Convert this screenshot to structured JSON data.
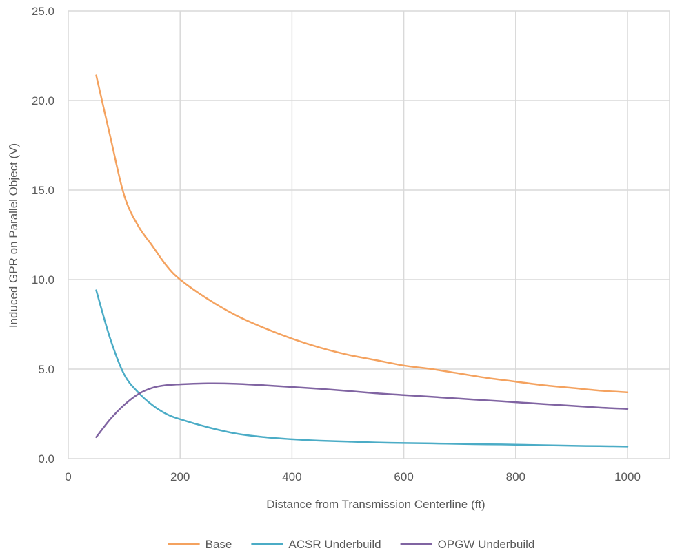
{
  "chart_data": {
    "type": "line",
    "title": "",
    "xlabel": "Distance from Transmission Centerline (ft)",
    "ylabel": "Induced GPR on Parallel Object (V)",
    "xlim": [
      0,
      1000
    ],
    "ylim": [
      0,
      25
    ],
    "x_ticks": [
      "0",
      "200",
      "400",
      "600",
      "800",
      "1000"
    ],
    "y_ticks": [
      "0.0",
      "5.0",
      "10.0",
      "15.0",
      "20.0",
      "25.0"
    ],
    "grid": true,
    "legend_position": "bottom",
    "series": [
      {
        "name": "Base",
        "color": "#F4A25F",
        "points": [
          [
            50,
            21.4
          ],
          [
            75,
            18.0
          ],
          [
            100,
            14.7
          ],
          [
            125,
            13.0
          ],
          [
            150,
            11.9
          ],
          [
            175,
            10.8
          ],
          [
            200,
            10.0
          ],
          [
            250,
            8.9
          ],
          [
            300,
            8.0
          ],
          [
            350,
            7.3
          ],
          [
            400,
            6.7
          ],
          [
            450,
            6.2
          ],
          [
            500,
            5.8
          ],
          [
            550,
            5.5
          ],
          [
            600,
            5.2
          ],
          [
            650,
            5.0
          ],
          [
            700,
            4.75
          ],
          [
            750,
            4.5
          ],
          [
            800,
            4.3
          ],
          [
            850,
            4.1
          ],
          [
            900,
            3.95
          ],
          [
            950,
            3.8
          ],
          [
            1000,
            3.7
          ]
        ]
      },
      {
        "name": "ACSR Underbuild",
        "color": "#4BACC6",
        "points": [
          [
            50,
            9.4
          ],
          [
            75,
            6.7
          ],
          [
            100,
            4.7
          ],
          [
            125,
            3.7
          ],
          [
            150,
            3.0
          ],
          [
            175,
            2.5
          ],
          [
            200,
            2.2
          ],
          [
            250,
            1.75
          ],
          [
            300,
            1.4
          ],
          [
            350,
            1.2
          ],
          [
            400,
            1.08
          ],
          [
            450,
            1.0
          ],
          [
            500,
            0.95
          ],
          [
            550,
            0.9
          ],
          [
            600,
            0.87
          ],
          [
            650,
            0.85
          ],
          [
            700,
            0.82
          ],
          [
            750,
            0.8
          ],
          [
            800,
            0.78
          ],
          [
            850,
            0.75
          ],
          [
            900,
            0.72
          ],
          [
            950,
            0.7
          ],
          [
            1000,
            0.68
          ]
        ]
      },
      {
        "name": "OPGW Underbuild",
        "color": "#8064A2",
        "points": [
          [
            50,
            1.2
          ],
          [
            75,
            2.2
          ],
          [
            100,
            3.0
          ],
          [
            125,
            3.6
          ],
          [
            150,
            3.95
          ],
          [
            175,
            4.1
          ],
          [
            200,
            4.15
          ],
          [
            250,
            4.2
          ],
          [
            300,
            4.18
          ],
          [
            350,
            4.1
          ],
          [
            400,
            4.0
          ],
          [
            450,
            3.9
          ],
          [
            500,
            3.78
          ],
          [
            550,
            3.65
          ],
          [
            600,
            3.55
          ],
          [
            650,
            3.45
          ],
          [
            700,
            3.35
          ],
          [
            750,
            3.25
          ],
          [
            800,
            3.15
          ],
          [
            850,
            3.05
          ],
          [
            900,
            2.95
          ],
          [
            950,
            2.85
          ],
          [
            1000,
            2.78
          ]
        ]
      }
    ]
  }
}
